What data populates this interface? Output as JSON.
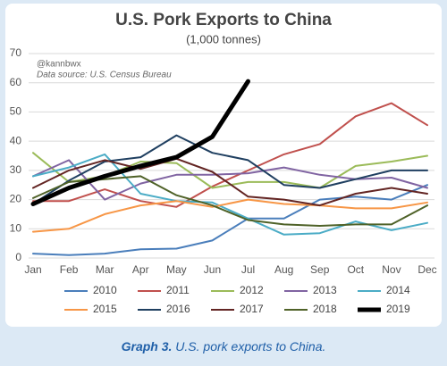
{
  "chart_data": {
    "type": "line",
    "title": "U.S. Pork Exports to China",
    "subtitle": "(1,000 tonnes)",
    "annotations": [
      "@kannbwx",
      "Data source: U.S. Census Bureau"
    ],
    "categories": [
      "Jan",
      "Feb",
      "Mar",
      "Apr",
      "May",
      "Jun",
      "Jul",
      "Aug",
      "Sep",
      "Oct",
      "Nov",
      "Dec"
    ],
    "ylim": [
      0,
      70
    ],
    "yticks": [
      0,
      10,
      20,
      30,
      40,
      50,
      60,
      70
    ],
    "grid": true,
    "legend": "bottom",
    "series": [
      {
        "name": "2010",
        "color": "#4a7ebb",
        "line_width": 2,
        "values": [
          1.5,
          1,
          1.5,
          3,
          3.2,
          6,
          13.5,
          13.5,
          20,
          21,
          20,
          25
        ]
      },
      {
        "name": "2011",
        "color": "#c0504d",
        "line_width": 2,
        "values": [
          19.5,
          19.5,
          23.5,
          19.5,
          17.5,
          24.5,
          30,
          35.5,
          39,
          48.5,
          53,
          45.5
        ]
      },
      {
        "name": "2012",
        "color": "#9bbb59",
        "line_width": 2,
        "values": [
          36,
          26,
          28,
          33,
          32.5,
          24,
          26,
          26,
          24,
          31.5,
          33,
          35
        ]
      },
      {
        "name": "2013",
        "color": "#8064a2",
        "line_width": 2,
        "values": [
          28,
          33.5,
          20,
          25.5,
          28.5,
          28.5,
          29,
          31,
          28.5,
          27,
          27.5,
          24
        ]
      },
      {
        "name": "2014",
        "color": "#4bacc6",
        "line_width": 2,
        "values": [
          28,
          31,
          35.5,
          22,
          19.5,
          19,
          13.5,
          8,
          8.5,
          12.5,
          9.5,
          12
        ]
      },
      {
        "name": "2015",
        "color": "#f79646",
        "line_width": 2,
        "values": [
          9,
          10,
          15,
          18,
          19.5,
          17.5,
          20,
          18.5,
          18,
          17,
          17,
          19
        ]
      },
      {
        "name": "2016",
        "color": "#1f3f60",
        "line_width": 2,
        "values": [
          18.5,
          26.5,
          33,
          34.5,
          42,
          36,
          33.5,
          25,
          24,
          27,
          30,
          30
        ]
      },
      {
        "name": "2017",
        "color": "#632523",
        "line_width": 2,
        "values": [
          24,
          30,
          33.5,
          30.5,
          34,
          29.5,
          21,
          20,
          18,
          22,
          24,
          22
        ]
      },
      {
        "name": "2018",
        "color": "#4f6228",
        "line_width": 2,
        "values": [
          20.5,
          26,
          27,
          28,
          21.5,
          18,
          13,
          11.5,
          11,
          11.5,
          11.5,
          18
        ]
      },
      {
        "name": "2019",
        "color": "#000000",
        "line_width": 5,
        "values": [
          18.5,
          24,
          28,
          31.5,
          34.5,
          41.5,
          60.5,
          null,
          null,
          null,
          null,
          null
        ]
      }
    ]
  },
  "caption": {
    "label": "Graph 3.",
    "text": "U.S. pork exports to China."
  }
}
